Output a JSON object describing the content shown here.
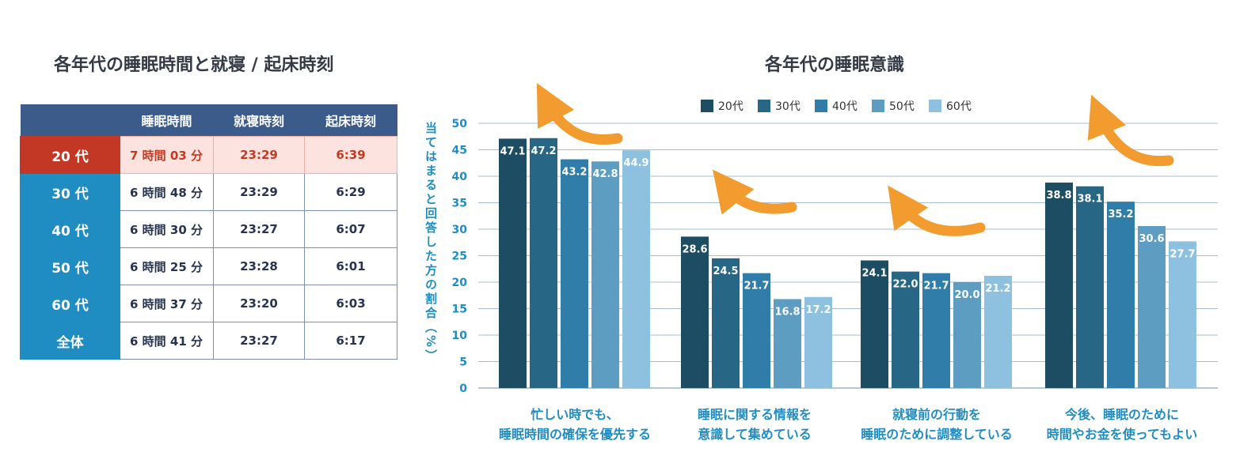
{
  "left_title": "各年代の睡眠時間と就寝 / 起床時刻",
  "right_title": "各年代の睡眠意識",
  "table": {
    "headers": [
      "",
      "睡眠時間",
      "就寝時刻",
      "起床時刻"
    ],
    "rows": [
      {
        "age": "20 代",
        "sleep": "7 時間 03 分",
        "bed": "23:29",
        "wake": "6:39"
      },
      {
        "age": "30 代",
        "sleep": "6 時間 48 分",
        "bed": "23:29",
        "wake": "6:29"
      },
      {
        "age": "40 代",
        "sleep": "6 時間 30 分",
        "bed": "23:27",
        "wake": "6:07"
      },
      {
        "age": "50 代",
        "sleep": "6 時間 25 分",
        "bed": "23:28",
        "wake": "6:01"
      },
      {
        "age": "60 代",
        "sleep": "6 時間 37 分",
        "bed": "23:20",
        "wake": "6:03"
      },
      {
        "age": "全体",
        "sleep": "6 時間 41 分",
        "bed": "23:27",
        "wake": "6:17"
      }
    ]
  },
  "colors": {
    "series": [
      "#1c4d63",
      "#276685",
      "#2f7da8",
      "#5d9dc2",
      "#8ec1e0"
    ],
    "arrow": "#f29b2e",
    "grid": "#a9bdd0",
    "axis_text": "#1f8dc1"
  },
  "chart_data": {
    "type": "bar",
    "title": "各年代の睡眠意識",
    "ylabel": "当てはまると回答した方の割合（%）",
    "ylim": [
      0,
      50
    ],
    "yticks": [
      0,
      5,
      10,
      15,
      20,
      25,
      30,
      35,
      40,
      45,
      50
    ],
    "categories": [
      [
        "忙しい時でも、",
        "睡眠時間の確保を優先する"
      ],
      [
        "睡眠に関する情報を",
        "意識して集めている"
      ],
      [
        "就寝前の行動を",
        "睡眠のために調整している"
      ],
      [
        "今後、睡眠のために",
        "時間やお金を使ってもよい"
      ]
    ],
    "series": [
      {
        "name": "20代",
        "values": [
          47.1,
          28.6,
          24.1,
          38.8
        ]
      },
      {
        "name": "30代",
        "values": [
          47.2,
          24.5,
          22.0,
          38.1
        ]
      },
      {
        "name": "40代",
        "values": [
          43.2,
          21.7,
          21.7,
          35.2
        ]
      },
      {
        "name": "50代",
        "values": [
          42.8,
          16.8,
          20.0,
          30.6
        ]
      },
      {
        "name": "60代",
        "values": [
          44.9,
          17.2,
          21.2,
          27.7
        ]
      }
    ],
    "legend": "top-center"
  }
}
